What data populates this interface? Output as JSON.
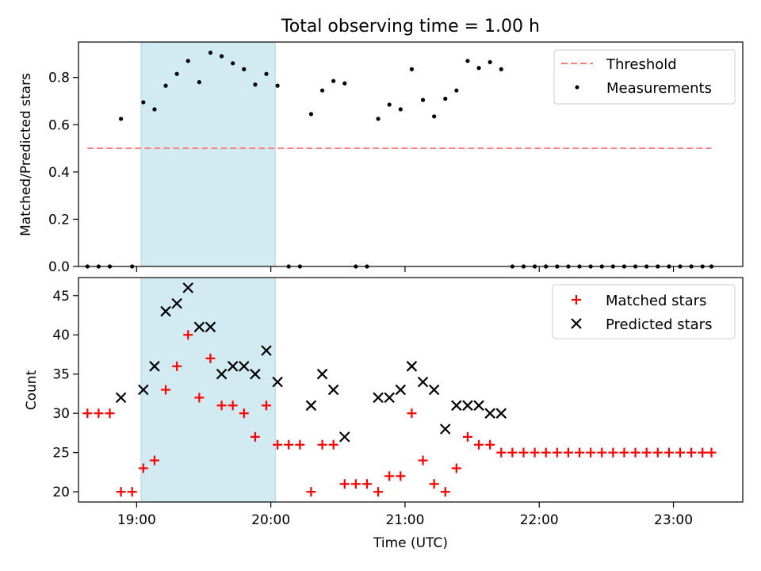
{
  "figure": {
    "title": "Total observing time = 1.00 h",
    "xlabel": "Time (UTC)",
    "shaded_span": [
      "19:02",
      "20:02"
    ],
    "shade_color": "#add8e6",
    "x_ticks": [
      "19:00",
      "20:00",
      "21:00",
      "22:00",
      "23:00"
    ],
    "xlim": [
      "18:34",
      "23:31"
    ]
  },
  "chart_data": [
    {
      "type": "scatter",
      "ylabel": "Matched/Predicted stars",
      "ylim": [
        0,
        0.95
      ],
      "y_ticks": [
        "0.0",
        "0.2",
        "0.4",
        "0.6",
        "0.8"
      ],
      "legend_position": "upper right",
      "threshold": {
        "name": "Threshold",
        "value": 0.5,
        "x_start": "18:38",
        "x_end": "23:17",
        "color": "#ff7f7f"
      },
      "series": [
        {
          "name": "Measurements",
          "color": "#000000",
          "points": [
            [
              "18:38",
              0
            ],
            [
              "18:43",
              0
            ],
            [
              "18:48",
              0
            ],
            [
              "18:53",
              0.625
            ],
            [
              "18:58",
              0
            ],
            [
              "19:03",
              0.695
            ],
            [
              "19:08",
              0.665
            ],
            [
              "19:13",
              0.765
            ],
            [
              "19:18",
              0.815
            ],
            [
              "19:23",
              0.87
            ],
            [
              "19:28",
              0.78
            ],
            [
              "19:33",
              0.905
            ],
            [
              "19:38",
              0.89
            ],
            [
              "19:43",
              0.86
            ],
            [
              "19:48",
              0.835
            ],
            [
              "19:53",
              0.77
            ],
            [
              "19:58",
              0.815
            ],
            [
              "20:03",
              0.765
            ],
            [
              "20:08",
              0
            ],
            [
              "20:13",
              0
            ],
            [
              "20:18",
              0.645
            ],
            [
              "20:23",
              0.745
            ],
            [
              "20:28",
              0.785
            ],
            [
              "20:33",
              0.775
            ],
            [
              "20:38",
              0
            ],
            [
              "20:43",
              0
            ],
            [
              "20:48",
              0.625
            ],
            [
              "20:53",
              0.685
            ],
            [
              "20:58",
              0.665
            ],
            [
              "21:03",
              0.835
            ],
            [
              "21:08",
              0.705
            ],
            [
              "21:13",
              0.635
            ],
            [
              "21:18",
              0.71
            ],
            [
              "21:23",
              0.745
            ],
            [
              "21:28",
              0.87
            ],
            [
              "21:33",
              0.84
            ],
            [
              "21:38",
              0.865
            ],
            [
              "21:43",
              0.835
            ],
            [
              "21:48",
              0
            ],
            [
              "21:53",
              0
            ],
            [
              "21:58",
              0
            ],
            [
              "22:03",
              0
            ],
            [
              "22:08",
              0
            ],
            [
              "22:13",
              0
            ],
            [
              "22:18",
              0
            ],
            [
              "22:23",
              0
            ],
            [
              "22:28",
              0
            ],
            [
              "22:33",
              0
            ],
            [
              "22:38",
              0
            ],
            [
              "22:43",
              0
            ],
            [
              "22:48",
              0
            ],
            [
              "22:53",
              0
            ],
            [
              "22:58",
              0
            ],
            [
              "23:03",
              0
            ],
            [
              "23:08",
              0
            ],
            [
              "23:13",
              0
            ],
            [
              "23:17",
              0
            ]
          ]
        }
      ]
    },
    {
      "type": "scatter",
      "ylabel": "Count",
      "ylim": [
        18.7,
        47.3
      ],
      "y_ticks": [
        "20",
        "25",
        "30",
        "35",
        "40",
        "45"
      ],
      "legend_position": "upper right",
      "series": [
        {
          "name": "Matched stars",
          "marker": "plus",
          "color": "#ff0000",
          "points": [
            [
              "18:38",
              30
            ],
            [
              "18:43",
              30
            ],
            [
              "18:48",
              30
            ],
            [
              "18:53",
              20
            ],
            [
              "18:58",
              20
            ],
            [
              "19:03",
              23
            ],
            [
              "19:08",
              24
            ],
            [
              "19:13",
              33
            ],
            [
              "19:18",
              36
            ],
            [
              "19:23",
              40
            ],
            [
              "19:28",
              32
            ],
            [
              "19:33",
              37
            ],
            [
              "19:38",
              31
            ],
            [
              "19:43",
              31
            ],
            [
              "19:48",
              30
            ],
            [
              "19:53",
              27
            ],
            [
              "19:58",
              31
            ],
            [
              "20:03",
              26
            ],
            [
              "20:08",
              26
            ],
            [
              "20:13",
              26
            ],
            [
              "20:18",
              20
            ],
            [
              "20:23",
              26
            ],
            [
              "20:28",
              26
            ],
            [
              "20:33",
              21
            ],
            [
              "20:38",
              21
            ],
            [
              "20:43",
              21
            ],
            [
              "20:48",
              20
            ],
            [
              "20:53",
              22
            ],
            [
              "20:58",
              22
            ],
            [
              "21:03",
              30
            ],
            [
              "21:08",
              24
            ],
            [
              "21:13",
              21
            ],
            [
              "21:18",
              20
            ],
            [
              "21:23",
              23
            ],
            [
              "21:28",
              27
            ],
            [
              "21:33",
              26
            ],
            [
              "21:38",
              26
            ],
            [
              "21:43",
              25
            ],
            [
              "21:48",
              25
            ],
            [
              "21:53",
              25
            ],
            [
              "21:58",
              25
            ],
            [
              "22:03",
              25
            ],
            [
              "22:08",
              25
            ],
            [
              "22:13",
              25
            ],
            [
              "22:18",
              25
            ],
            [
              "22:23",
              25
            ],
            [
              "22:28",
              25
            ],
            [
              "22:33",
              25
            ],
            [
              "22:38",
              25
            ],
            [
              "22:43",
              25
            ],
            [
              "22:48",
              25
            ],
            [
              "22:53",
              25
            ],
            [
              "22:58",
              25
            ],
            [
              "23:03",
              25
            ],
            [
              "23:08",
              25
            ],
            [
              "23:13",
              25
            ],
            [
              "23:17",
              25
            ]
          ]
        },
        {
          "name": "Predicted stars",
          "marker": "x",
          "color": "#000000",
          "points": [
            [
              "18:53",
              32
            ],
            [
              "19:03",
              33
            ],
            [
              "19:08",
              36
            ],
            [
              "19:13",
              43
            ],
            [
              "19:18",
              44
            ],
            [
              "19:23",
              46
            ],
            [
              "19:28",
              41
            ],
            [
              "19:33",
              41
            ],
            [
              "19:38",
              35
            ],
            [
              "19:43",
              36
            ],
            [
              "19:48",
              36
            ],
            [
              "19:53",
              35
            ],
            [
              "19:58",
              38
            ],
            [
              "20:03",
              34
            ],
            [
              "20:18",
              31
            ],
            [
              "20:23",
              35
            ],
            [
              "20:28",
              33
            ],
            [
              "20:33",
              27
            ],
            [
              "20:48",
              32
            ],
            [
              "20:53",
              32
            ],
            [
              "20:58",
              33
            ],
            [
              "21:03",
              36
            ],
            [
              "21:08",
              34
            ],
            [
              "21:13",
              33
            ],
            [
              "21:18",
              28
            ],
            [
              "21:23",
              31
            ],
            [
              "21:28",
              31
            ],
            [
              "21:33",
              31
            ],
            [
              "21:38",
              30
            ],
            [
              "21:43",
              30
            ]
          ]
        }
      ]
    }
  ]
}
